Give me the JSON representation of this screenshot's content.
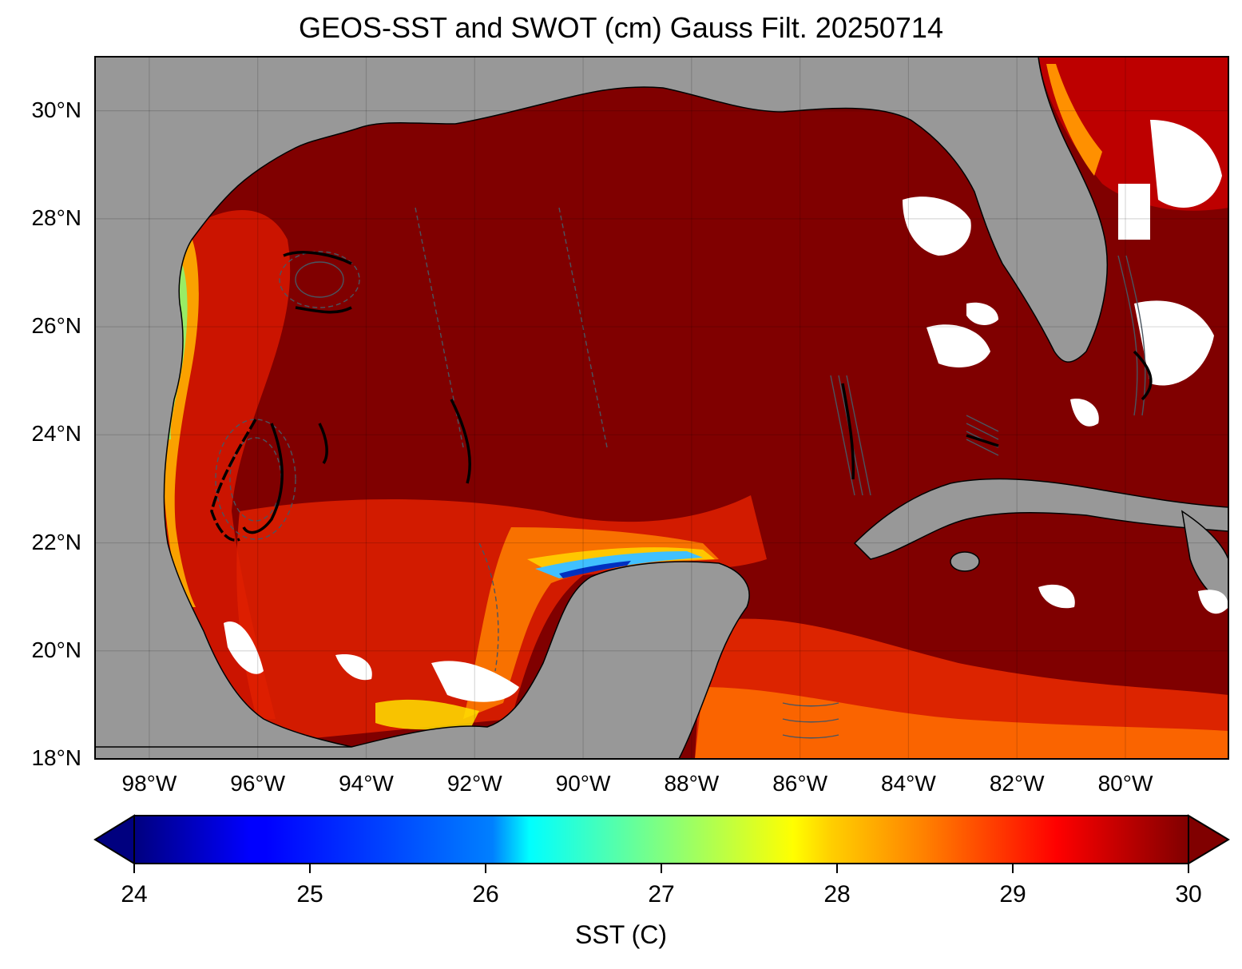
{
  "title": "GEOS-SST  and SWOT (cm) Gauss Filt. 20250714",
  "map": {
    "lon_range": [
      -99,
      -78.1
    ],
    "lat_range": [
      18,
      31
    ],
    "lat_ticks": [
      {
        "value": 30,
        "label": "30°N"
      },
      {
        "value": 28,
        "label": "28°N"
      },
      {
        "value": 26,
        "label": "26°N"
      },
      {
        "value": 24,
        "label": "24°N"
      },
      {
        "value": 22,
        "label": "22°N"
      },
      {
        "value": 20,
        "label": "20°N"
      },
      {
        "value": 18,
        "label": "18°N"
      }
    ],
    "lon_ticks": [
      {
        "value": -98,
        "label": "98°W"
      },
      {
        "value": -96,
        "label": "96°W"
      },
      {
        "value": -94,
        "label": "94°W"
      },
      {
        "value": -92,
        "label": "92°W"
      },
      {
        "value": -90,
        "label": "90°W"
      },
      {
        "value": -88,
        "label": "88°W"
      },
      {
        "value": -86,
        "label": "86°W"
      },
      {
        "value": -84,
        "label": "84°W"
      },
      {
        "value": -82,
        "label": "82°W"
      },
      {
        "value": -80,
        "label": "80°W"
      }
    ],
    "colors": {
      "land": "#989898",
      "ocean_dominant": "#800000",
      "no_data": "#ffffff",
      "contour": "#4a5560"
    }
  },
  "colorbar": {
    "label": "SST (C)",
    "min": 24,
    "max": 30,
    "extend": "both",
    "colormap": "jet",
    "ticks": [
      {
        "value": 24,
        "label": "24"
      },
      {
        "value": 25,
        "label": "25"
      },
      {
        "value": 26,
        "label": "26"
      },
      {
        "value": 27,
        "label": "27"
      },
      {
        "value": 28,
        "label": "28"
      },
      {
        "value": 29,
        "label": "29"
      },
      {
        "value": 30,
        "label": "30"
      }
    ]
  }
}
